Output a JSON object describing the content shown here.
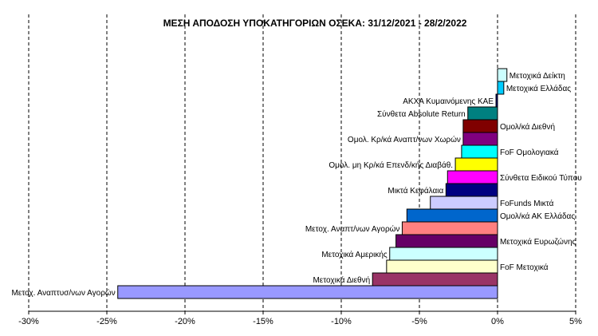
{
  "chart_data": {
    "type": "bar",
    "orientation": "horizontal",
    "title": "ΜΕΣΗ ΑΠΟΔΟΣΗ ΥΠΟΚΑΤΗΓΟΡΙΩΝ  ΟΣΕΚΑ:  31/12/2021  - 28/2/2022",
    "xlabel": "",
    "ylabel": "",
    "xlim": [
      -30,
      5
    ],
    "x_tick_step": 5,
    "x_tick_suffix": "%",
    "grid": "vertical-dashed",
    "legend": "none",
    "categories": [
      {
        "label": "Μετοχικά Δείκτη",
        "value": 0.6,
        "color": "#CCFFFF",
        "label_side": "right"
      },
      {
        "label": "Μετοχικά Ελλάδας",
        "value": 0.4,
        "color": "#00CCFF",
        "label_side": "right"
      },
      {
        "label": "ΑΚΧΑ Κυμαινόμενης ΚΑΕ",
        "value": -0.1,
        "color": "#000080",
        "label_side": "left"
      },
      {
        "label": "Σύνθετα Absolute Return",
        "value": -1.9,
        "color": "#008080",
        "label_side": "left"
      },
      {
        "label": "Ομολ/κά Διεθνή",
        "value": -2.2,
        "color": "#800000",
        "label_side": "right"
      },
      {
        "label": "Ομολ. Κρ/κά Αναπτ/νων Χωρών",
        "value": -2.2,
        "color": "#800080",
        "label_side": "left"
      },
      {
        "label": "FoF Ομολογιακά",
        "value": -2.3,
        "color": "#00FFFF",
        "label_side": "right"
      },
      {
        "label": "Ομολ. μη Κρ/κά Επενδ/κής Διαβάθ.",
        "value": -2.7,
        "color": "#FFFF00",
        "label_side": "left"
      },
      {
        "label": "Σύνθετα Ειδικού Τύπου",
        "value": -3.2,
        "color": "#FF00FF",
        "label_side": "right"
      },
      {
        "label": "Μικτά Κεφάλαια",
        "value": -3.3,
        "color": "#000080",
        "label_side": "left"
      },
      {
        "label": "FoFunds Μικτά",
        "value": -4.3,
        "color": "#CCCCFF",
        "label_side": "right"
      },
      {
        "label": "Ομολ/κά ΑΚ Ελλάδας",
        "value": -5.8,
        "color": "#0066CC",
        "label_side": "right"
      },
      {
        "label": "Μετοχ.  Αναπτ/νων Αγορών",
        "value": -6.1,
        "color": "#FF8080",
        "label_side": "left"
      },
      {
        "label": "Μετοχικά Ευρωζώνης",
        "value": -6.5,
        "color": "#660066",
        "label_side": "right"
      },
      {
        "label": "Μετοχικά Αμερικής",
        "value": -6.9,
        "color": "#CCFFFF",
        "label_side": "left"
      },
      {
        "label": "FoF Μετοχικά",
        "value": -7.1,
        "color": "#FFFFCC",
        "label_side": "right"
      },
      {
        "label": "Μετοχικά Διεθνή",
        "value": -8.0,
        "color": "#993366",
        "label_side": "left"
      },
      {
        "label": "Μετοχ. Αναπτυσ/νων Αγορών",
        "value": -24.3,
        "color": "#9999FF",
        "label_side": "left"
      }
    ]
  }
}
